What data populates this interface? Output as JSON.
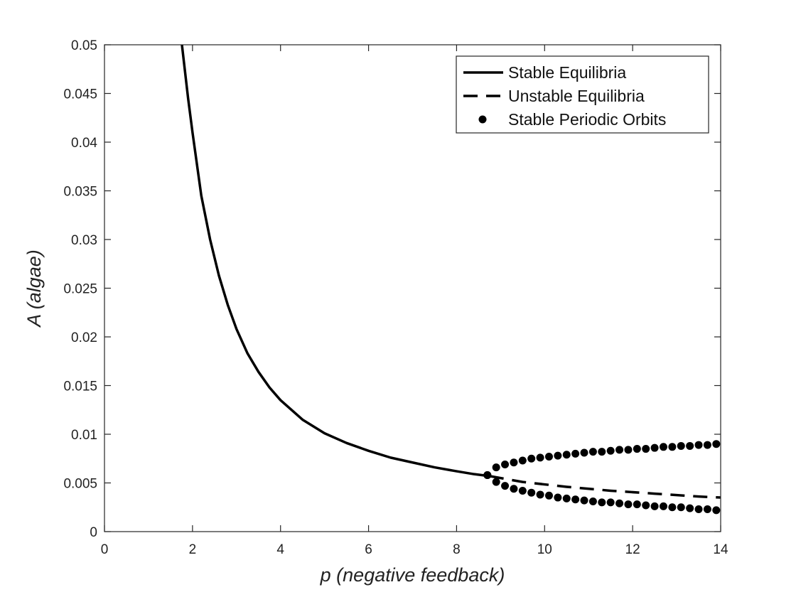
{
  "chart_data": {
    "type": "line",
    "title": "",
    "xlabel": "p (negative feedback)",
    "ylabel": "A (algae)",
    "xlim": [
      0,
      14
    ],
    "ylim": [
      0,
      0.05
    ],
    "xticks": [
      0,
      2,
      4,
      6,
      8,
      10,
      12,
      14
    ],
    "xtick_labels": [
      "0",
      "2",
      "4",
      "6",
      "8",
      "10",
      "12",
      "14"
    ],
    "yticks": [
      0,
      0.005,
      0.01,
      0.015,
      0.02,
      0.025,
      0.03,
      0.035,
      0.04,
      0.045,
      0.05
    ],
    "ytick_labels": [
      "0",
      "0.005",
      "0.01",
      "0.015",
      "0.02",
      "0.025",
      "0.03",
      "0.035",
      "0.04",
      "0.045",
      "0.05"
    ],
    "grid": false,
    "legend_position": "top-right",
    "series": [
      {
        "name": "Stable Equilibria",
        "style": "solid",
        "x": [
          1.76,
          1.9,
          2.0,
          2.2,
          2.4,
          2.6,
          2.8,
          3.0,
          3.25,
          3.5,
          3.75,
          4.0,
          4.5,
          5.0,
          5.5,
          6.0,
          6.5,
          7.0,
          7.5,
          8.0,
          8.4,
          8.75
        ],
        "y": [
          0.05,
          0.0445,
          0.041,
          0.0345,
          0.03,
          0.0263,
          0.0233,
          0.0208,
          0.0183,
          0.0164,
          0.0148,
          0.0135,
          0.0115,
          0.0101,
          0.0091,
          0.0083,
          0.0076,
          0.0071,
          0.0066,
          0.0062,
          0.0059,
          0.0057
        ]
      },
      {
        "name": "Unstable Equilibria",
        "style": "dashed",
        "x": [
          8.75,
          9.5,
          10.5,
          11.5,
          12.5,
          13.5,
          14.0
        ],
        "y": [
          0.0057,
          0.0051,
          0.0046,
          0.0042,
          0.0039,
          0.0036,
          0.0035
        ]
      },
      {
        "name": "Stable Periodic Orbits",
        "style": "markers",
        "x": [
          8.7,
          8.9,
          9.1,
          9.3,
          9.5,
          9.7,
          9.9,
          10.1,
          10.3,
          10.5,
          10.7,
          10.9,
          11.1,
          11.3,
          11.5,
          11.7,
          11.9,
          12.1,
          12.3,
          12.5,
          12.7,
          12.9,
          13.1,
          13.3,
          13.5,
          13.7,
          13.9
        ],
        "y_upper": [
          0.0058,
          0.0066,
          0.0069,
          0.0071,
          0.0073,
          0.0075,
          0.0076,
          0.0077,
          0.0078,
          0.0079,
          0.008,
          0.0081,
          0.0082,
          0.0082,
          0.0083,
          0.0084,
          0.0084,
          0.0085,
          0.0085,
          0.0086,
          0.0087,
          0.0087,
          0.0088,
          0.0088,
          0.0089,
          0.0089,
          0.009
        ],
        "y_lower": [
          0.0058,
          0.0051,
          0.0047,
          0.0044,
          0.0042,
          0.004,
          0.0038,
          0.0037,
          0.0035,
          0.0034,
          0.0033,
          0.0032,
          0.0031,
          0.003,
          0.003,
          0.0029,
          0.0028,
          0.0028,
          0.0027,
          0.0026,
          0.0026,
          0.0025,
          0.0025,
          0.0024,
          0.0023,
          0.0023,
          0.0022
        ]
      }
    ],
    "colors": {
      "line": "#000000",
      "axis": "#262626",
      "background": "#ffffff"
    }
  }
}
